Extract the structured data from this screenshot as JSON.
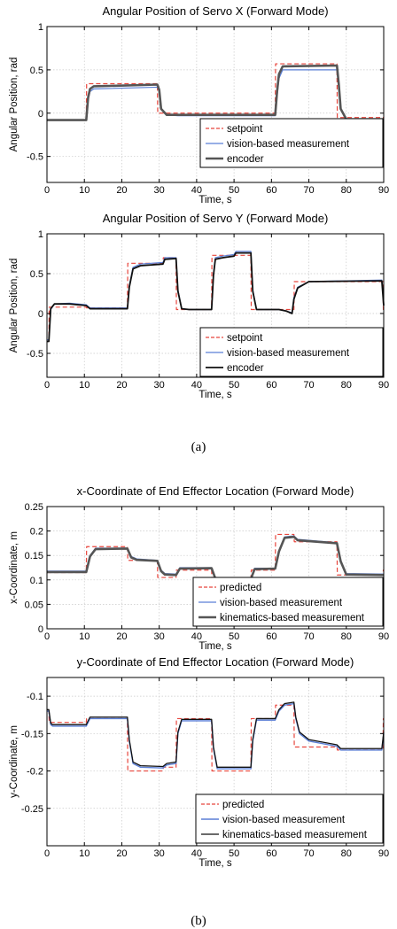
{
  "captions": {
    "a": "(a)",
    "b": "(b)"
  },
  "colors": {
    "setpoint": "#e8453c",
    "vision": "#5b7fd6",
    "encoder": "#111111",
    "axis": "#000000",
    "grid": "#c8c8c8"
  },
  "chart_data": [
    {
      "type": "line",
      "title": "Angular Position of Servo X (Forward Mode)",
      "xlabel": "Time, s",
      "ylabel": "Angular Position, rad",
      "xlim": [
        0,
        90
      ],
      "ylim": [
        -0.8,
        1
      ],
      "xticks": [
        0,
        10,
        20,
        30,
        40,
        50,
        60,
        70,
        80,
        90
      ],
      "yticks": [
        -0.5,
        0,
        0.5,
        1
      ],
      "ytick_labels": [
        "-0.5",
        "0",
        "0.5",
        "1"
      ],
      "grid": true,
      "legend_position": "bottom-right",
      "series": [
        {
          "name": "setpoint",
          "style": "dashed",
          "color": "#e8453c",
          "width": 1.2,
          "x": [
            0,
            10.5,
            10.6,
            29.5,
            29.6,
            61,
            61.1,
            77.5,
            77.6,
            90
          ],
          "y": [
            -0.08,
            -0.08,
            0.34,
            0.34,
            0,
            0,
            0.57,
            0.57,
            -0.05,
            -0.05
          ]
        },
        {
          "name": "vision-based measurement",
          "style": "solid",
          "color": "#5b7fd6",
          "width": 1.2,
          "x": [
            0,
            10.5,
            11,
            11.5,
            12.5,
            29.5,
            30,
            30.5,
            32,
            35,
            61,
            61.5,
            62,
            63,
            77.5,
            78,
            78.5,
            80,
            90
          ],
          "y": [
            -0.08,
            -0.08,
            0.15,
            0.25,
            0.28,
            0.3,
            0.25,
            0.05,
            -0.02,
            -0.03,
            -0.03,
            0.2,
            0.4,
            0.5,
            0.5,
            0.3,
            0.05,
            -0.07,
            -0.08
          ]
        },
        {
          "name": "encoder",
          "style": "solid",
          "color": "#555555",
          "width": 2.6,
          "x": [
            0,
            10.5,
            11,
            11.5,
            12.5,
            29.5,
            30,
            30.5,
            32,
            35,
            61,
            61.5,
            62,
            63,
            77.5,
            78,
            78.5,
            80,
            90
          ],
          "y": [
            -0.08,
            -0.08,
            0.18,
            0.28,
            0.31,
            0.33,
            0.27,
            0.05,
            -0.02,
            -0.02,
            -0.02,
            0.25,
            0.45,
            0.54,
            0.55,
            0.33,
            0.05,
            -0.07,
            -0.07
          ]
        }
      ]
    },
    {
      "type": "line",
      "title": "Angular Position of Servo Y (Forward Mode)",
      "xlabel": "Time, s",
      "ylabel": "Angular Position, rad",
      "xlim": [
        0,
        90
      ],
      "ylim": [
        -0.8,
        1
      ],
      "xticks": [
        0,
        10,
        20,
        30,
        40,
        50,
        60,
        70,
        80,
        90
      ],
      "yticks": [
        -0.5,
        0,
        0.5,
        1
      ],
      "ytick_labels": [
        "-0.5",
        "0",
        "0.5",
        "1"
      ],
      "grid": true,
      "legend_position": "bottom-right",
      "series": [
        {
          "name": "setpoint",
          "style": "dashed",
          "color": "#e8453c",
          "width": 1.2,
          "x": [
            0,
            0.5,
            0.6,
            10.5,
            10.6,
            21.5,
            21.6,
            31,
            31.1,
            34.5,
            34.6,
            44,
            44.1,
            54.5,
            54.6,
            66,
            66.1,
            89.8,
            89.9,
            90
          ],
          "y": [
            -0.35,
            -0.35,
            0.08,
            0.08,
            0.07,
            0.07,
            0.63,
            0.63,
            0.7,
            0.7,
            0.05,
            0.05,
            0.73,
            0.73,
            0.05,
            0.05,
            0.4,
            0.4,
            0.05,
            0.05
          ]
        },
        {
          "name": "vision-based measurement",
          "style": "solid",
          "color": "#5b7fd6",
          "width": 1.2,
          "x": [
            0,
            0.5,
            1,
            2,
            6,
            10.5,
            11.5,
            21.5,
            22,
            23,
            25,
            31,
            31.5,
            34.5,
            35,
            36,
            38,
            44,
            44.5,
            45,
            47,
            50,
            50.5,
            54.5,
            55,
            56,
            62,
            64,
            65.5,
            66,
            67,
            70,
            89.5,
            90
          ],
          "y": [
            -0.33,
            -0.33,
            0.05,
            0.12,
            0.13,
            0.11,
            0.07,
            0.07,
            0.35,
            0.58,
            0.62,
            0.64,
            0.7,
            0.7,
            0.3,
            0.06,
            0.05,
            0.05,
            0.5,
            0.7,
            0.72,
            0.74,
            0.78,
            0.78,
            0.3,
            0.05,
            0.05,
            0.03,
            0.01,
            0.2,
            0.33,
            0.4,
            0.42,
            0.1
          ]
        },
        {
          "name": "encoder",
          "style": "solid",
          "color": "#111111",
          "width": 1.8,
          "x": [
            0,
            0.5,
            1,
            2,
            6,
            10.5,
            11.5,
            21.5,
            22,
            23,
            25,
            31,
            31.5,
            34.5,
            35,
            36,
            38,
            44,
            44.5,
            45,
            47,
            50,
            50.5,
            54.5,
            55,
            56,
            62,
            64,
            65.5,
            66,
            67,
            70,
            89.5,
            90
          ],
          "y": [
            -0.35,
            -0.35,
            0.06,
            0.12,
            0.12,
            0.1,
            0.06,
            0.06,
            0.33,
            0.56,
            0.6,
            0.62,
            0.68,
            0.69,
            0.28,
            0.06,
            0.05,
            0.05,
            0.48,
            0.68,
            0.7,
            0.72,
            0.76,
            0.76,
            0.28,
            0.05,
            0.05,
            0.03,
            0.0,
            0.18,
            0.32,
            0.4,
            0.41,
            0.1
          ]
        }
      ]
    },
    {
      "type": "line",
      "title": "x-Coordinate of End Effector Location (Forward Mode)",
      "xlabel": "Time, s",
      "ylabel": "x-Coordinate, m",
      "xlim": [
        0,
        90
      ],
      "ylim": [
        0,
        0.25
      ],
      "xticks": [
        0,
        10,
        20,
        30,
        40,
        50,
        60,
        70,
        80,
        90
      ],
      "yticks": [
        0,
        0.05,
        0.1,
        0.15,
        0.2,
        0.25
      ],
      "ytick_labels": [
        "0",
        "0.05",
        "0.1",
        "0.15",
        "0.2",
        "0.25"
      ],
      "grid": true,
      "legend_position": "bottom-right",
      "series": [
        {
          "name": "predicted",
          "style": "dashed",
          "color": "#e8453c",
          "width": 1.2,
          "x": [
            0,
            10.5,
            10.6,
            21.5,
            21.6,
            29.5,
            29.6,
            34.5,
            34.6,
            44,
            44.1,
            54.5,
            54.6,
            61,
            61.1,
            66,
            66.1,
            77.5,
            77.6,
            89.8,
            89.9,
            90
          ],
          "y": [
            0.115,
            0.115,
            0.168,
            0.168,
            0.14,
            0.14,
            0.105,
            0.105,
            0.12,
            0.12,
            0.1,
            0.1,
            0.12,
            0.12,
            0.193,
            0.193,
            0.178,
            0.178,
            0.11,
            0.11,
            0.12,
            0.12
          ]
        },
        {
          "name": "vision-based measurement",
          "style": "solid",
          "color": "#5b7fd6",
          "width": 1.2,
          "x": [
            0,
            10.5,
            11.5,
            13,
            21.5,
            22.5,
            24,
            29.5,
            30.5,
            31.5,
            34.5,
            35.5,
            44,
            45,
            54.5,
            55.5,
            61,
            62,
            63.5,
            66,
            67,
            77.5,
            78.5,
            80,
            90
          ],
          "y": [
            0.118,
            0.118,
            0.15,
            0.165,
            0.165,
            0.148,
            0.143,
            0.14,
            0.12,
            0.113,
            0.112,
            0.125,
            0.125,
            0.105,
            0.104,
            0.124,
            0.124,
            0.16,
            0.188,
            0.19,
            0.183,
            0.176,
            0.14,
            0.113,
            0.112
          ]
        },
        {
          "name": "kinematics-based measurement",
          "style": "solid",
          "color": "#555555",
          "width": 2.6,
          "x": [
            0,
            10.5,
            11.5,
            13,
            21.5,
            22.5,
            24,
            29.5,
            30.5,
            31.5,
            34.5,
            35.5,
            44,
            45,
            54.5,
            55.5,
            61,
            62,
            63.5,
            66,
            67,
            77.5,
            78.5,
            80,
            90
          ],
          "y": [
            0.116,
            0.116,
            0.148,
            0.163,
            0.164,
            0.146,
            0.141,
            0.139,
            0.118,
            0.111,
            0.11,
            0.123,
            0.124,
            0.103,
            0.102,
            0.122,
            0.123,
            0.158,
            0.186,
            0.188,
            0.181,
            0.175,
            0.138,
            0.111,
            0.11
          ]
        }
      ]
    },
    {
      "type": "line",
      "title": "y-Coordinate of End Effector Location (Forward Mode)",
      "xlabel": "Time, s",
      "ylabel": "y-Coordinate, m",
      "xlim": [
        0,
        90
      ],
      "ylim": [
        -0.3,
        -0.075
      ],
      "xticks": [
        0,
        10,
        20,
        30,
        40,
        50,
        60,
        70,
        80,
        90
      ],
      "yticks": [
        -0.25,
        -0.2,
        -0.15,
        -0.1
      ],
      "ytick_labels": [
        "-0.25",
        "-0.2",
        "-0.15",
        "-0.1"
      ],
      "grid": true,
      "legend_position": "bottom-right",
      "series": [
        {
          "name": "predicted",
          "style": "dashed",
          "color": "#e8453c",
          "width": 1.2,
          "x": [
            0,
            0.5,
            0.6,
            10.5,
            10.6,
            21.5,
            21.6,
            31,
            31.1,
            34.5,
            34.6,
            44,
            44.1,
            54.5,
            54.6,
            61,
            61.1,
            66,
            66.1,
            77.5,
            77.6,
            89.8,
            89.9,
            90
          ],
          "y": [
            -0.12,
            -0.12,
            -0.135,
            -0.135,
            -0.13,
            -0.13,
            -0.2,
            -0.2,
            -0.195,
            -0.195,
            -0.13,
            -0.13,
            -0.2,
            -0.2,
            -0.13,
            -0.13,
            -0.112,
            -0.112,
            -0.168,
            -0.168,
            -0.172,
            -0.172,
            -0.13,
            -0.13
          ]
        },
        {
          "name": "vision-based measurement",
          "style": "solid",
          "color": "#5b7fd6",
          "width": 1.4,
          "x": [
            0,
            0.5,
            1,
            1.5,
            3,
            10.5,
            11.5,
            21.5,
            22,
            23,
            25,
            31,
            32,
            34.5,
            35,
            36,
            44,
            44.5,
            45.5,
            54.5,
            55,
            56,
            61,
            62,
            63.5,
            66,
            66.5,
            67.5,
            70,
            77.5,
            78.5,
            89.5,
            90
          ],
          "y": [
            -0.12,
            -0.12,
            -0.138,
            -0.14,
            -0.14,
            -0.14,
            -0.13,
            -0.13,
            -0.16,
            -0.19,
            -0.195,
            -0.196,
            -0.192,
            -0.19,
            -0.15,
            -0.133,
            -0.133,
            -0.17,
            -0.197,
            -0.197,
            -0.16,
            -0.132,
            -0.132,
            -0.12,
            -0.112,
            -0.11,
            -0.13,
            -0.15,
            -0.16,
            -0.167,
            -0.172,
            -0.172,
            -0.15
          ]
        },
        {
          "name": "kinematics-based measurement",
          "style": "solid",
          "color": "#111111",
          "width": 1.3,
          "x": [
            0,
            0.5,
            1,
            1.5,
            3,
            10.5,
            11.5,
            21.5,
            22,
            23,
            25,
            31,
            32,
            34.5,
            35,
            36,
            44,
            44.5,
            45.5,
            54.5,
            55,
            56,
            61,
            62,
            63.5,
            66,
            66.5,
            67.5,
            70,
            77.5,
            78.5,
            89.5,
            90
          ],
          "y": [
            -0.118,
            -0.118,
            -0.136,
            -0.138,
            -0.138,
            -0.138,
            -0.128,
            -0.128,
            -0.158,
            -0.188,
            -0.193,
            -0.194,
            -0.19,
            -0.188,
            -0.148,
            -0.131,
            -0.131,
            -0.168,
            -0.195,
            -0.195,
            -0.158,
            -0.13,
            -0.13,
            -0.118,
            -0.11,
            -0.108,
            -0.128,
            -0.148,
            -0.158,
            -0.165,
            -0.17,
            -0.17,
            -0.148
          ]
        }
      ]
    }
  ]
}
